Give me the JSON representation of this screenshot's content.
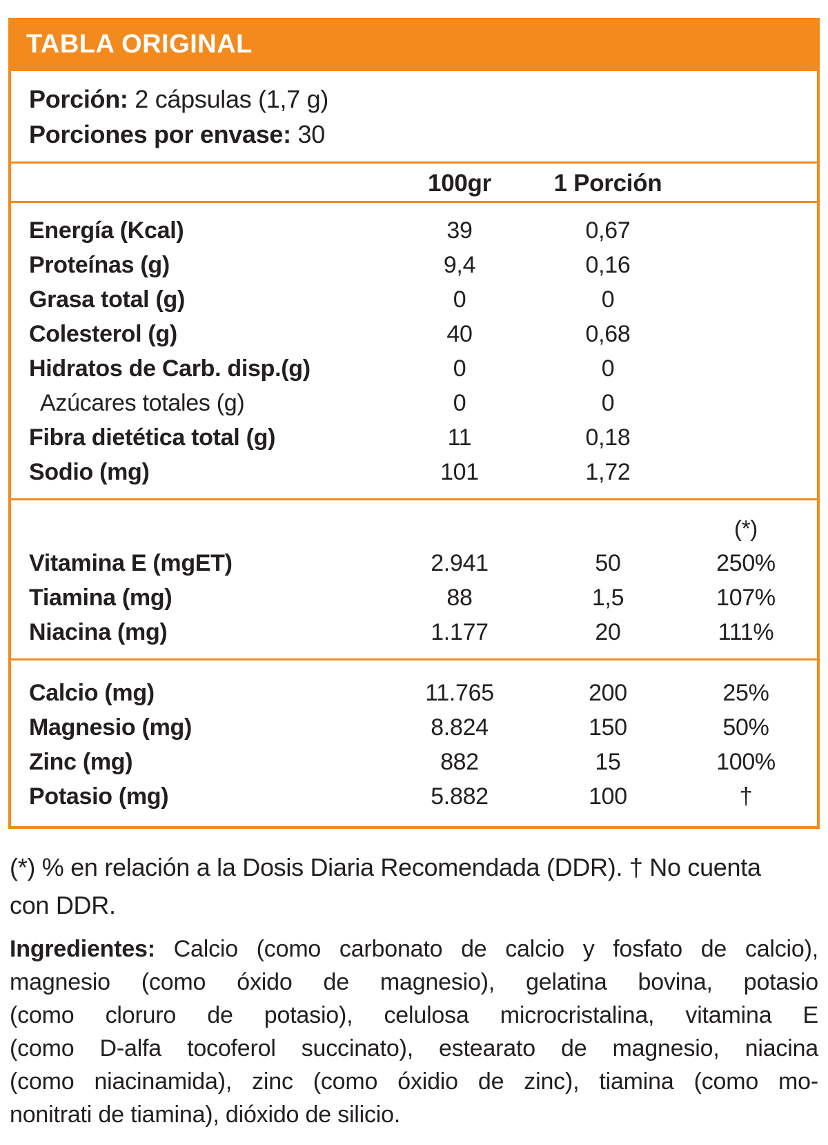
{
  "colors": {
    "accent_orange": "#f28a1e",
    "text_dark": "#231f20",
    "band_text": "#ffffff"
  },
  "header": {
    "title": "TABLA ORIGINAL"
  },
  "serving": {
    "portion_label": "Porción:",
    "portion_value": " 2 cápsulas (1,7 g)",
    "servings_label": "Porciones por envase:",
    "servings_value": " 30"
  },
  "columns": {
    "per100": "100gr",
    "per_serving": "1 Porción",
    "ddr_marker": "(*)"
  },
  "nutrients": {
    "rows": [
      {
        "label": "Energía (Kcal)",
        "per100": "39",
        "serving": "0,67"
      },
      {
        "label": "Proteínas (g)",
        "per100": "9,4",
        "serving": "0,16"
      },
      {
        "label": "Grasa total (g)",
        "per100": "0",
        "serving": "0"
      },
      {
        "label": "Colesterol (g)",
        "per100": "40",
        "serving": "0,68"
      },
      {
        "label": "Hidratos de Carb. disp.(g)",
        "per100": "0",
        "serving": "0"
      },
      {
        "label": "Azúcares totales (g)",
        "per100": "0",
        "serving": "0"
      },
      {
        "label": "Fibra dietética total (g)",
        "per100": "11",
        "serving": "0,18"
      },
      {
        "label": "Sodio (mg)",
        "per100": "101",
        "serving": "1,72"
      }
    ]
  },
  "vitamins": {
    "rows": [
      {
        "label": "Vitamina E (mgET)",
        "per100": "2.941",
        "serving": "50",
        "ddr": "250%"
      },
      {
        "label": "Tiamina (mg)",
        "per100": "88",
        "serving": "1,5",
        "ddr": "107%"
      },
      {
        "label": "Niacina (mg)",
        "per100": "1.177",
        "serving": "20",
        "ddr": "111%"
      }
    ]
  },
  "minerals": {
    "rows": [
      {
        "label": "Calcio (mg)",
        "per100": "11.765",
        "serving": "200",
        "ddr": "25%"
      },
      {
        "label": "Magnesio (mg)",
        "per100": "8.824",
        "serving": "150",
        "ddr": "50%"
      },
      {
        "label": "Zinc (mg)",
        "per100": "882",
        "serving": "15",
        "ddr": "100%"
      },
      {
        "label": "Potasio (mg)",
        "per100": "5.882",
        "serving": "100",
        "ddr": "†"
      }
    ]
  },
  "footnote": {
    "text": "(*) % en relación a la Dosis Diaria Recomendada (DDR). † No cuenta\ncon DDR."
  },
  "ingredients": {
    "label": "Ingredientes:",
    "line1_rest": " Calcio (como carbonato de calcio y fosfato de calcio),",
    "line2": "magnesio (como óxido de magnesio), gelatina bovina, potasio",
    "line3": "(como cloruro de potasio), celulosa microcristalina, vitamina E",
    "line4": "(como D-alfa tocoferol succinato), estearato de magnesio, niacina",
    "line5": "(como niacinamida), zinc (como óxidio de zinc), tiamina (como mo-",
    "line6": "nonitrati de tiamina), dióxido de silicio."
  }
}
